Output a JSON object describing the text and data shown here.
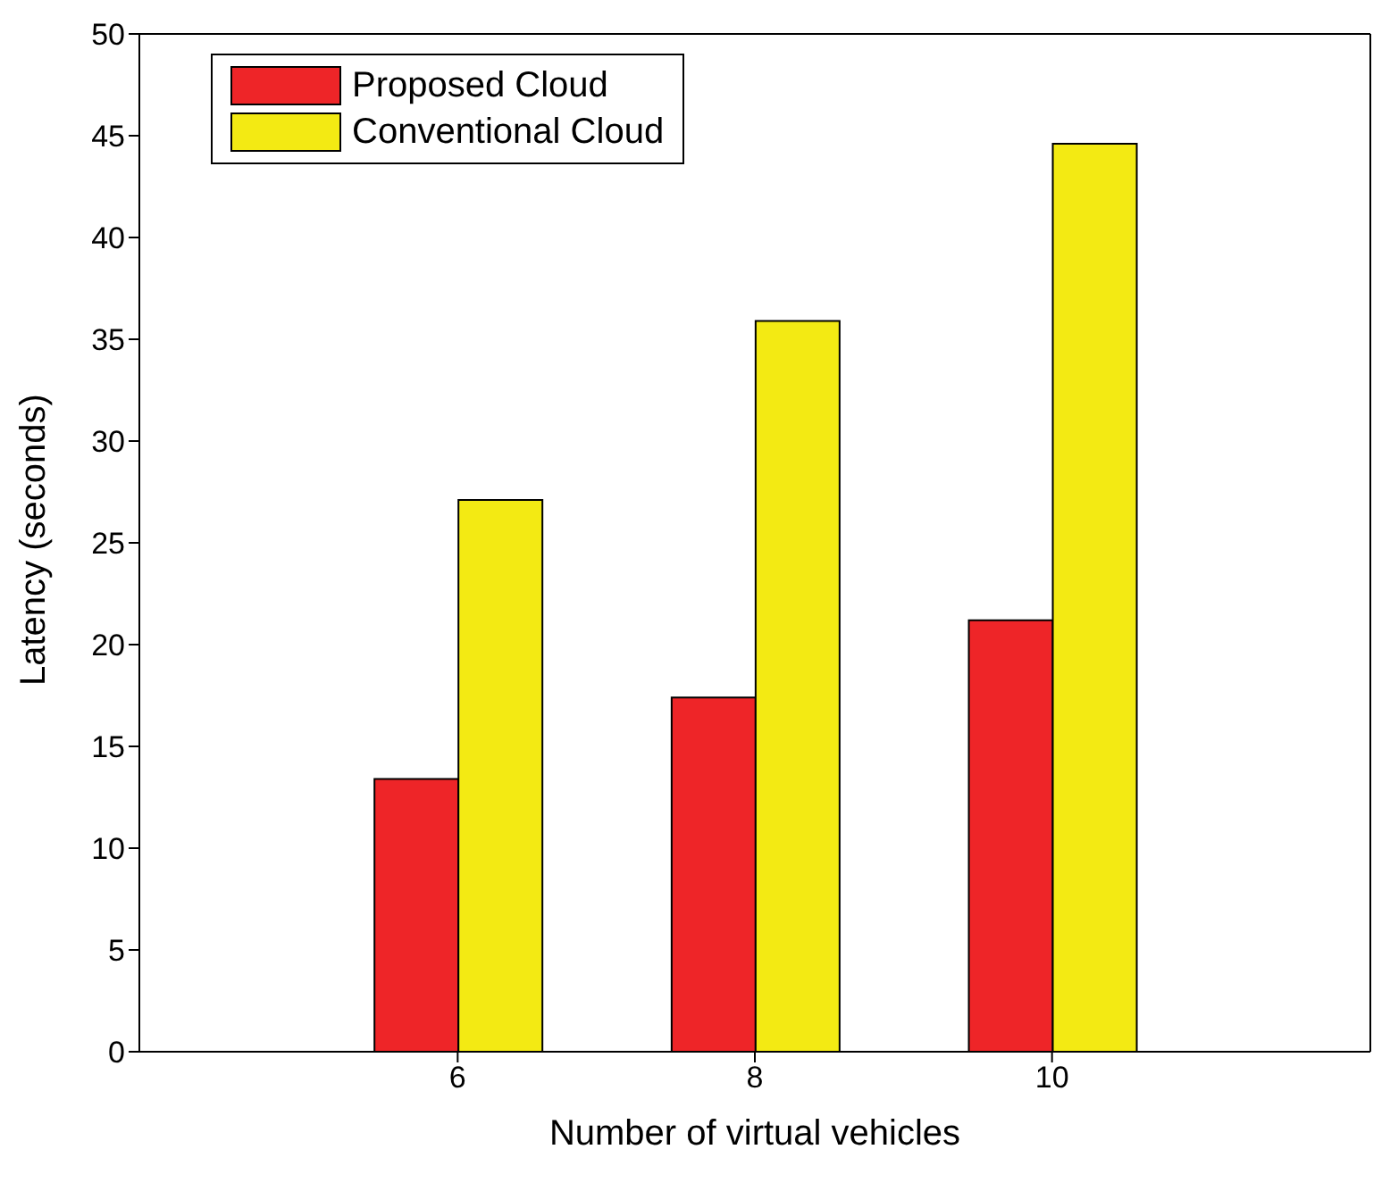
{
  "chart_data": {
    "type": "bar",
    "xlabel": "Number of virtual vehicles",
    "ylabel": "Latency (seconds)",
    "categories": [
      "6",
      "8",
      "10"
    ],
    "series": [
      {
        "name": "Proposed Cloud",
        "color": "#ee2528",
        "values": [
          13.4,
          17.4,
          21.2
        ]
      },
      {
        "name": "Conventional Cloud",
        "color": "#f3ea13",
        "values": [
          27.1,
          35.9,
          44.6
        ]
      }
    ],
    "ylim": [
      0,
      50
    ],
    "yticks": [
      0,
      5,
      10,
      15,
      20,
      25,
      30,
      35,
      40,
      45,
      50
    ],
    "grid": false,
    "legend": "top left"
  }
}
